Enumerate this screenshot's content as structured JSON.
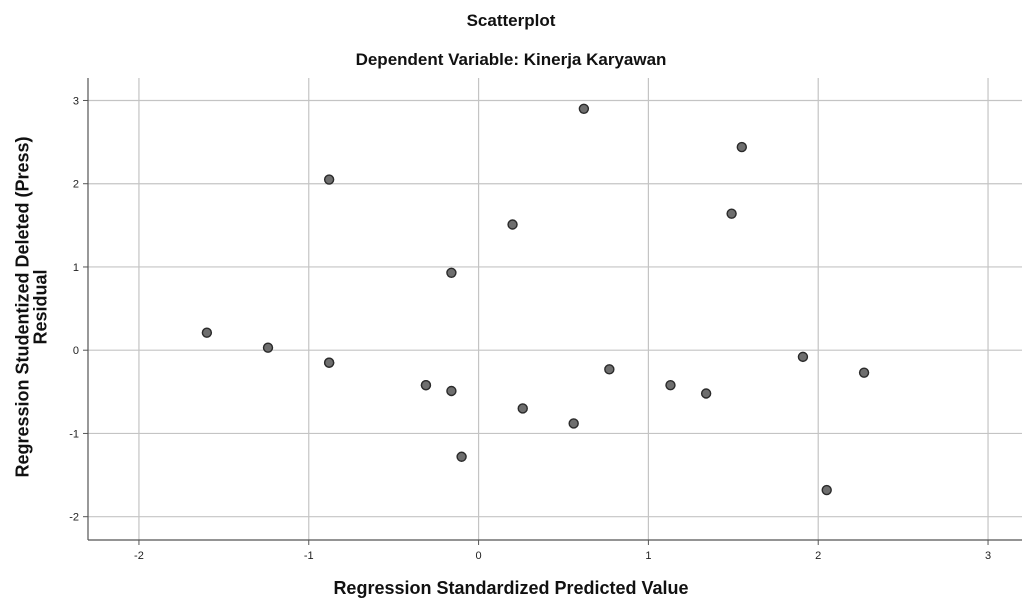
{
  "chart_data": {
    "type": "scatter",
    "title": "Scatterplot",
    "subtitle": "Dependent Variable: Kinerja Karyawan",
    "xlabel": "Regression Standardized Predicted Value",
    "ylabel_line1": "Regression Studentized Deleted (Press)",
    "ylabel_line2": "Residual",
    "xlim": [
      -2.3,
      3.2
    ],
    "ylim": [
      -2.28,
      3.27
    ],
    "xticks": [
      -2,
      -1,
      0,
      1,
      2,
      3
    ],
    "yticks": [
      -2,
      -1,
      0,
      1,
      2,
      3
    ],
    "grid": true,
    "points": [
      {
        "x": -1.6,
        "y": 0.21
      },
      {
        "x": -1.24,
        "y": 0.03
      },
      {
        "x": -0.88,
        "y": 2.05
      },
      {
        "x": -0.88,
        "y": -0.15
      },
      {
        "x": -0.88,
        "y": -0.15
      },
      {
        "x": -0.31,
        "y": -0.42
      },
      {
        "x": -0.31,
        "y": -0.42
      },
      {
        "x": -0.16,
        "y": 0.93
      },
      {
        "x": -0.16,
        "y": -0.49
      },
      {
        "x": -0.1,
        "y": -1.28
      },
      {
        "x": 0.2,
        "y": 1.51
      },
      {
        "x": 0.26,
        "y": -0.7
      },
      {
        "x": 0.56,
        "y": -0.88
      },
      {
        "x": 0.62,
        "y": 2.9
      },
      {
        "x": 0.77,
        "y": -0.23
      },
      {
        "x": 1.13,
        "y": -0.42
      },
      {
        "x": 1.34,
        "y": -0.52
      },
      {
        "x": 1.49,
        "y": 1.64
      },
      {
        "x": 1.55,
        "y": 2.44
      },
      {
        "x": 1.91,
        "y": -0.08
      },
      {
        "x": 2.05,
        "y": -1.68
      },
      {
        "x": 2.27,
        "y": -0.27
      }
    ],
    "colors": {
      "point_fill": "#6e6e6e",
      "point_stroke": "#2a2a2a",
      "grid": "#c4c4c4",
      "axis": "#555555"
    }
  }
}
